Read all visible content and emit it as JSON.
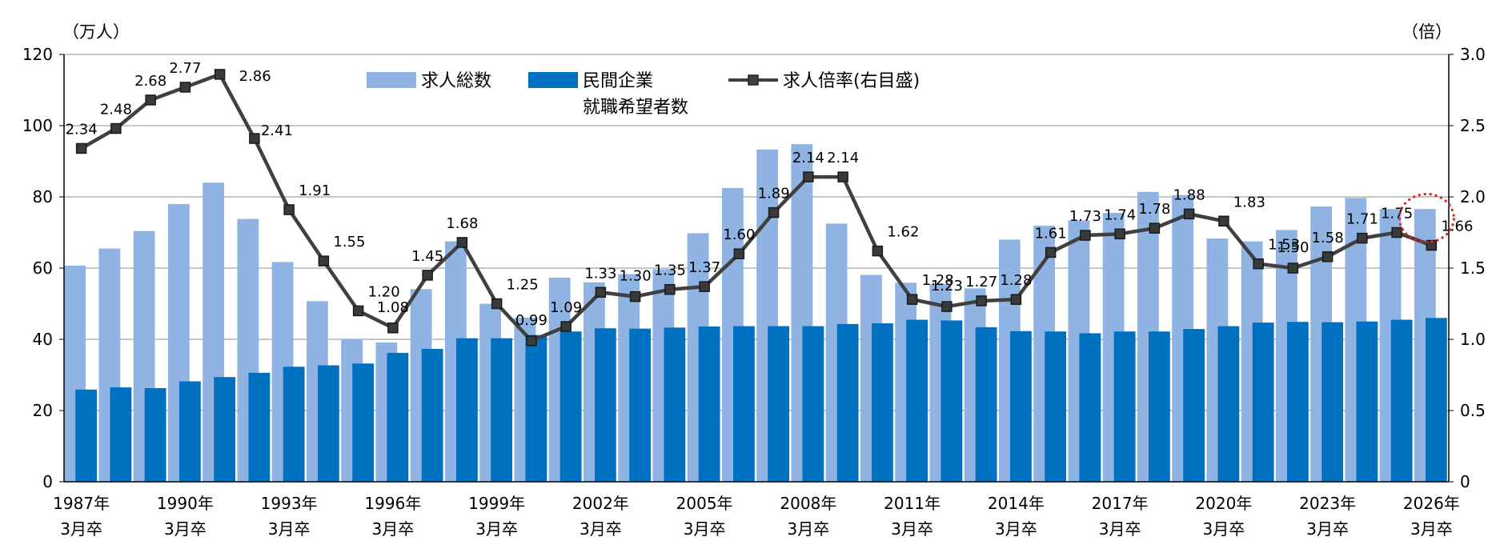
{
  "chart_data": {
    "type": "bar+line",
    "categories": [
      "1987",
      "1988",
      "1989",
      "1990",
      "1991",
      "1992",
      "1993",
      "1994",
      "1995",
      "1996",
      "1997",
      "1998",
      "1999",
      "2000",
      "2001",
      "2002",
      "2003",
      "2004",
      "2005",
      "2006",
      "2007",
      "2008",
      "2009",
      "2010",
      "2011",
      "2012",
      "2013",
      "2014",
      "2015",
      "2016",
      "2017",
      "2018",
      "2019",
      "2020",
      "2021",
      "2022",
      "2023",
      "2024",
      "2025",
      "2026"
    ],
    "x_tick_labels": [
      {
        "index": 0,
        "year": "1987年",
        "grad": "3月卒"
      },
      {
        "index": 3,
        "year": "1990年",
        "grad": "3月卒"
      },
      {
        "index": 6,
        "year": "1993年",
        "grad": "3月卒"
      },
      {
        "index": 9,
        "year": "1996年",
        "grad": "3月卒"
      },
      {
        "index": 12,
        "year": "1999年",
        "grad": "3月卒"
      },
      {
        "index": 15,
        "year": "2002年",
        "grad": "3月卒"
      },
      {
        "index": 18,
        "year": "2005年",
        "grad": "3月卒"
      },
      {
        "index": 21,
        "year": "2008年",
        "grad": "3月卒"
      },
      {
        "index": 24,
        "year": "2011年",
        "grad": "3月卒"
      },
      {
        "index": 27,
        "year": "2014年",
        "grad": "3月卒"
      },
      {
        "index": 30,
        "year": "2017年",
        "grad": "3月卒"
      },
      {
        "index": 33,
        "year": "2020年",
        "grad": "3月卒"
      },
      {
        "index": 36,
        "year": "2023年",
        "grad": "3月卒"
      },
      {
        "index": 39,
        "year": "2026年",
        "grad": "3月卒"
      }
    ],
    "series": [
      {
        "name": "求人総数",
        "kind": "bar",
        "axis": "left",
        "color": "#8fb4e3",
        "values": [
          60.7,
          65.5,
          70.4,
          78.0,
          84.0,
          73.8,
          61.7,
          50.7,
          40.0,
          39.1,
          54.1,
          67.5,
          50.0,
          46.1,
          57.3,
          56.0,
          58.3,
          59.7,
          69.8,
          82.5,
          93.3,
          94.8,
          72.5,
          58.1,
          55.9,
          55.5,
          54.3,
          68.0,
          71.9,
          73.4,
          75.5,
          81.4,
          80.5,
          68.3,
          67.5,
          70.7,
          77.3,
          79.7,
          76.6,
          76.6
        ]
      },
      {
        "name": "民間企業\n就職希望者数",
        "kind": "bar",
        "axis": "left",
        "color": "#0070c0",
        "values": [
          25.9,
          26.5,
          26.3,
          28.2,
          29.4,
          30.6,
          32.3,
          32.7,
          33.2,
          36.2,
          37.3,
          40.3,
          40.3,
          41.2,
          42.2,
          43.1,
          43.0,
          43.3,
          43.6,
          43.7,
          43.7,
          43.7,
          44.3,
          44.5,
          45.5,
          45.3,
          43.4,
          42.3,
          42.2,
          41.7,
          42.2,
          42.2,
          42.9,
          43.7,
          44.7,
          44.9,
          44.8,
          45.0,
          45.5,
          46.0
        ]
      },
      {
        "name": "求人倍率(右目盛)",
        "kind": "line",
        "axis": "right",
        "color": "#404040",
        "values": [
          2.34,
          2.48,
          2.68,
          2.77,
          2.86,
          2.41,
          1.91,
          1.55,
          1.2,
          1.08,
          1.45,
          1.68,
          1.25,
          0.99,
          1.09,
          1.33,
          1.3,
          1.35,
          1.37,
          1.6,
          1.89,
          2.14,
          2.14,
          1.62,
          1.28,
          1.23,
          1.27,
          1.28,
          1.61,
          1.73,
          1.74,
          1.78,
          1.88,
          1.83,
          1.53,
          1.5,
          1.58,
          1.71,
          1.75,
          1.66
        ],
        "labels": [
          "2.34",
          "2.48",
          "2.68",
          "2.77",
          "2.86",
          "2.41",
          "1.91",
          "1.55",
          "1.20",
          "1.08",
          "1.45",
          "1.68",
          "1.25",
          "0.99",
          "1.09",
          "1.33",
          "1.30",
          "1.35",
          "1.37",
          "1.60",
          "1.89",
          "2.14",
          "2.14",
          "1.62",
          "1.28",
          "1.23",
          "1.27",
          "1.28",
          "1.61",
          "1.73",
          "1.74",
          "1.78",
          "1.88",
          "1.83",
          "1.53",
          "1.50",
          "1.58",
          "1.71",
          "1.75",
          "1.66"
        ]
      }
    ],
    "y_left": {
      "unit": "（万人）",
      "min": 0,
      "max": 120,
      "ticks": [
        0,
        20,
        40,
        60,
        80,
        100,
        120
      ]
    },
    "y_right": {
      "unit": "（倍）",
      "min": 0,
      "max": 3.0,
      "ticks": [
        "0",
        "0.5",
        "1.0",
        "1.5",
        "2.0",
        "2.5",
        "3.0"
      ]
    },
    "grid": true,
    "legend_position": "top-center",
    "highlight": {
      "index": 39,
      "style": "red dotted circle"
    }
  }
}
